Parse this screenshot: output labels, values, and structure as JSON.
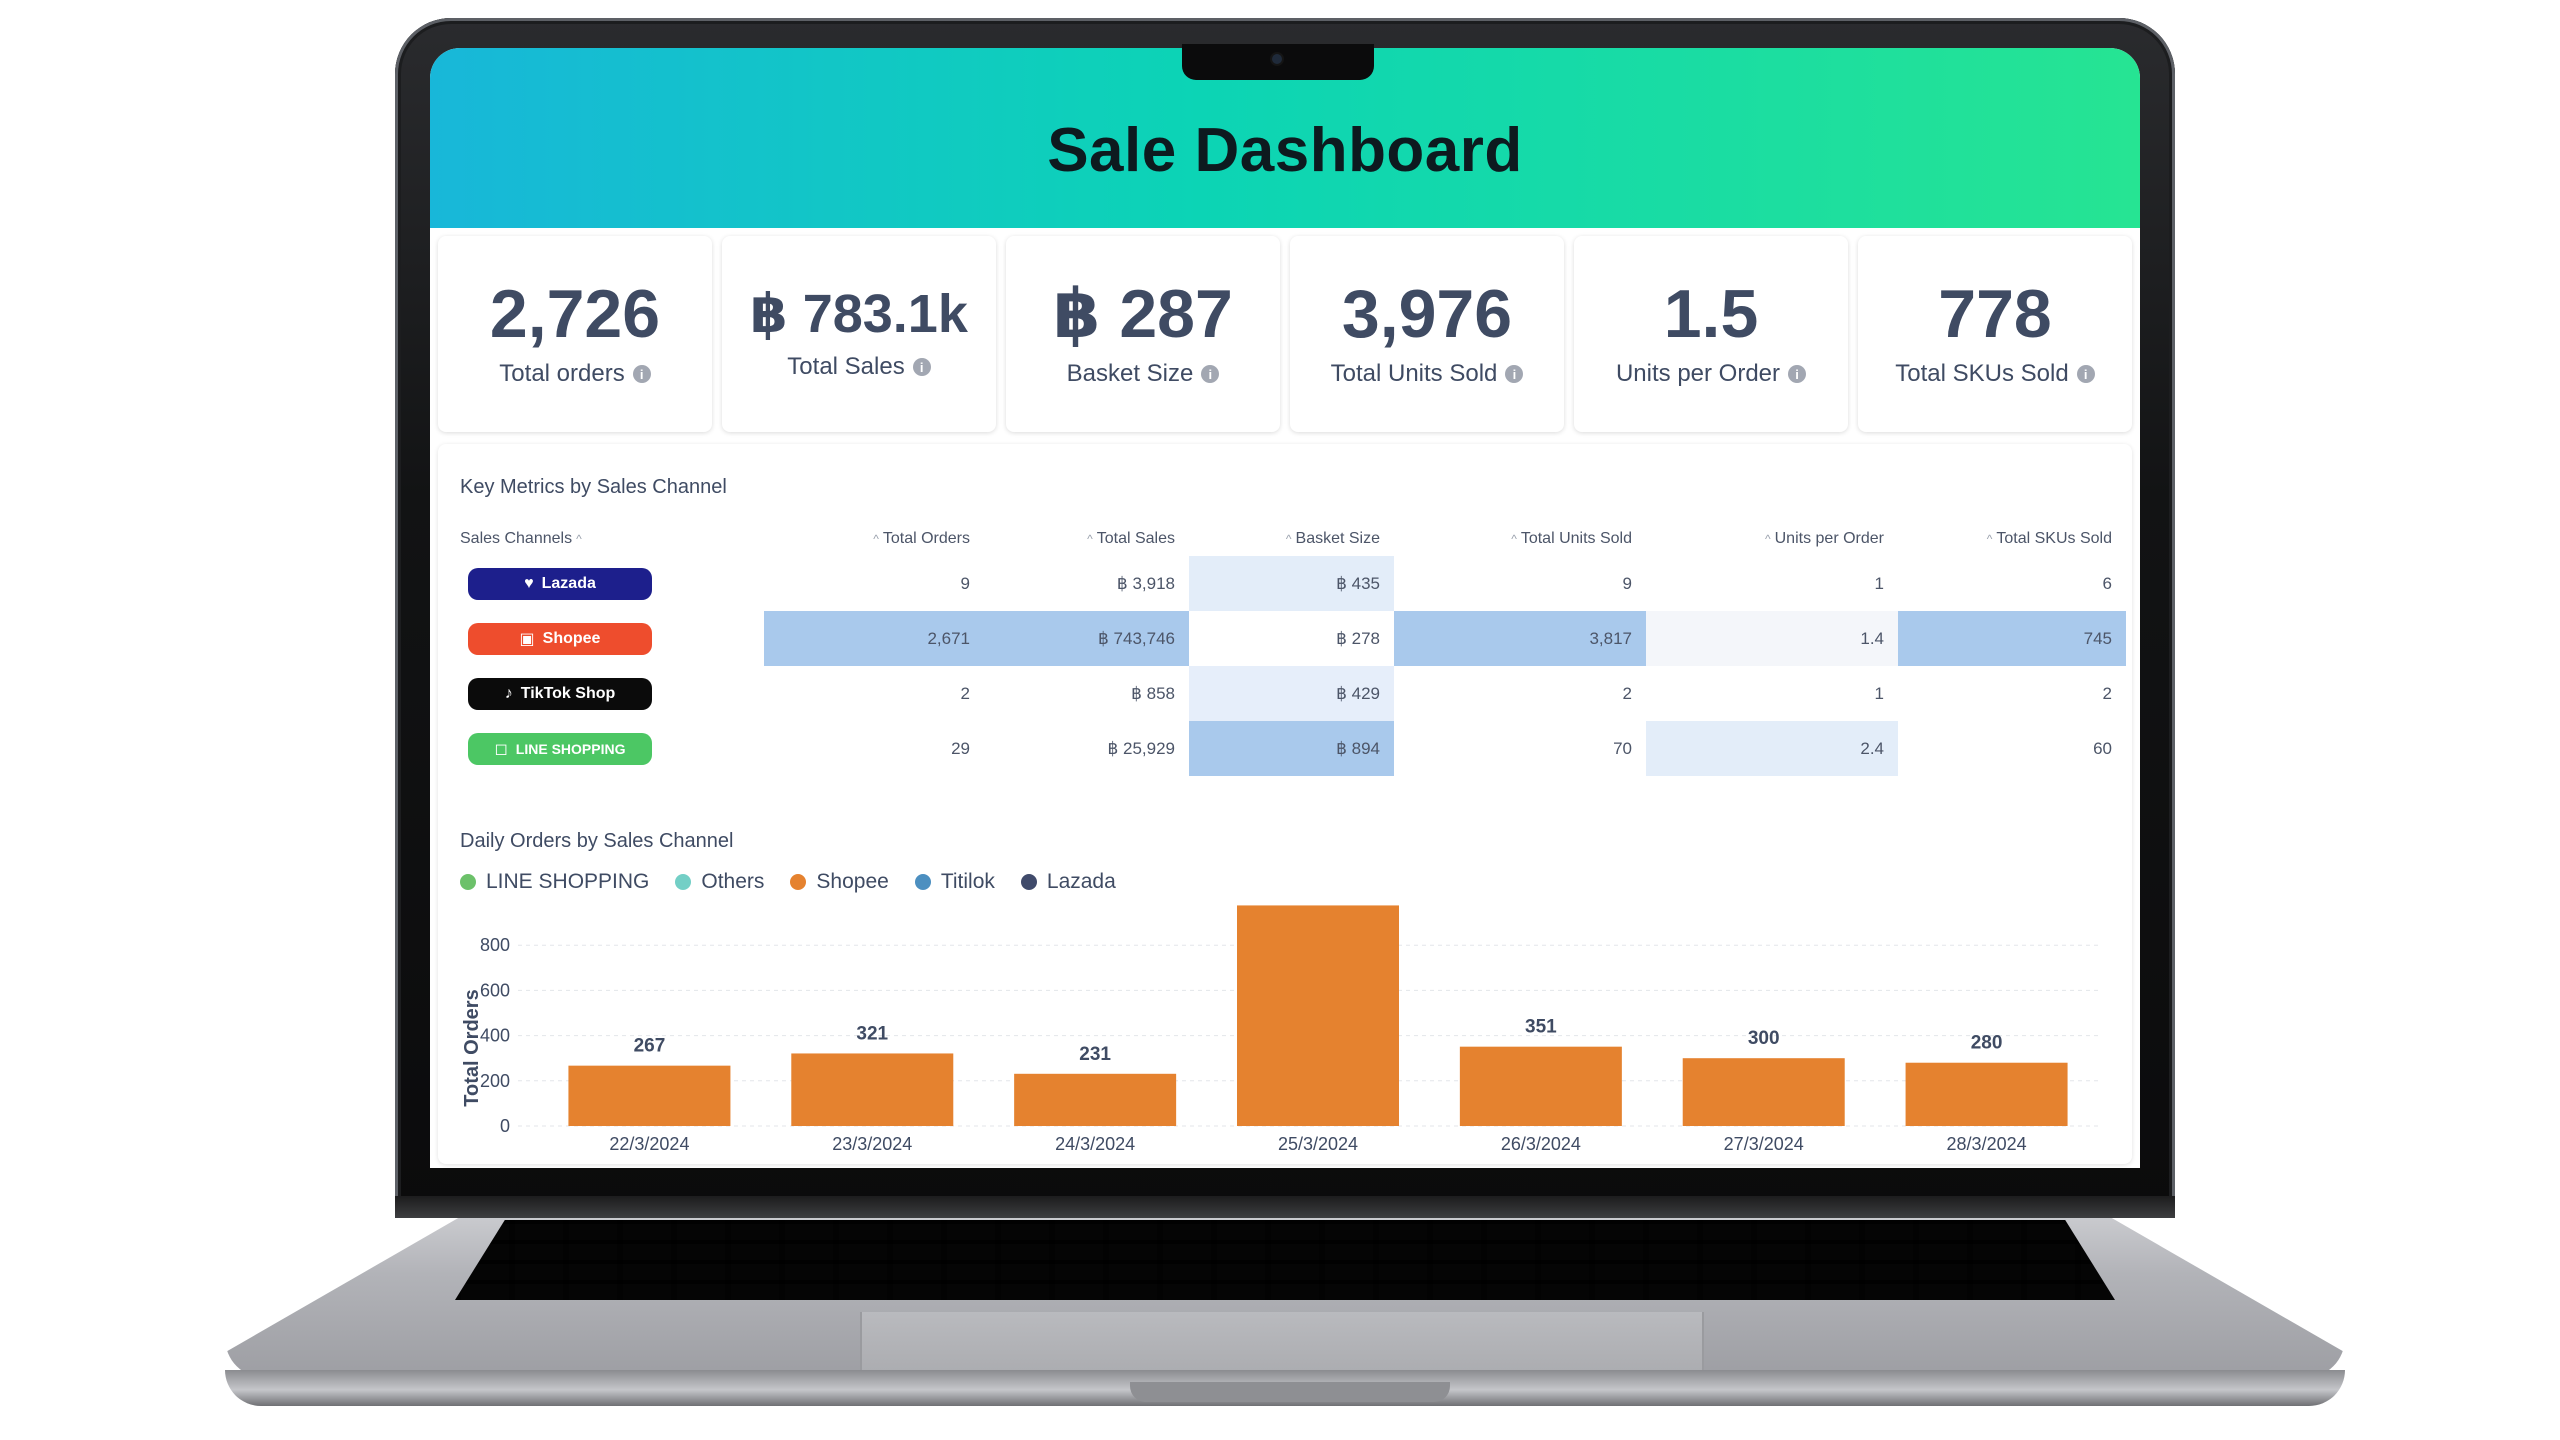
{
  "header": {
    "title": "Sale Dashboard"
  },
  "kpis": [
    {
      "value": "2,726",
      "label": "Total orders",
      "info_icon": "i"
    },
    {
      "value": "฿ 783.1k",
      "label": "Total Sales",
      "info_icon": "i"
    },
    {
      "value": "฿ 287",
      "label": "Basket Size",
      "info_icon": "i"
    },
    {
      "value": "3,976",
      "label": "Total Units Sold",
      "info_icon": "i"
    },
    {
      "value": "1.5",
      "label": "Units per Order",
      "info_icon": "i"
    },
    {
      "value": "778",
      "label": "Total SKUs Sold",
      "info_icon": "i"
    }
  ],
  "metrics": {
    "title": "Key Metrics by Sales Channel",
    "sort_caret": "^",
    "columns": [
      "Sales Channels",
      "Total Orders",
      "Total Sales",
      "Basket Size",
      "Total Units Sold",
      "Units per Order",
      "Total SKUs Sold"
    ],
    "rows": [
      {
        "channel": "Lazada",
        "badge_color": "#1d1f8c",
        "icon": "heart-icon",
        "icon_glyph": "♥",
        "cells": [
          "9",
          "฿ 3,918",
          "฿ 435",
          "9",
          "1",
          "6"
        ],
        "shades": [
          "#ffffff",
          "#ffffff",
          "#e3edf9",
          "#ffffff",
          "#ffffff",
          "#ffffff"
        ]
      },
      {
        "channel": "Shopee",
        "badge_color": "#ee4d2d",
        "icon": "shopping-bag-icon",
        "icon_glyph": "▣",
        "cells": [
          "2,671",
          "฿ 743,746",
          "฿ 278",
          "3,817",
          "1.4",
          "745"
        ],
        "shades": [
          "#a9c9ec",
          "#a9c9ec",
          "#ffffff",
          "#a9c9ec",
          "#f4f6fa",
          "#a9c9ec"
        ]
      },
      {
        "channel": "TikTok Shop",
        "badge_color": "#0b0b0b",
        "icon": "tiktok-note-icon",
        "icon_glyph": "♪",
        "cells": [
          "2",
          "฿ 858",
          "฿ 429",
          "2",
          "1",
          "2"
        ],
        "shades": [
          "#ffffff",
          "#ffffff",
          "#e6eefa",
          "#ffffff",
          "#ffffff",
          "#ffffff"
        ]
      },
      {
        "channel": "LINE SHOPPING",
        "badge_color": "#4cc764",
        "icon": "shopping-bag-outline-icon",
        "icon_glyph": "◻",
        "cells": [
          "29",
          "฿ 25,929",
          "฿ 894",
          "70",
          "2.4",
          "60"
        ],
        "shades": [
          "#ffffff",
          "#ffffff",
          "#a9c9ec",
          "#ffffff",
          "#e3edf9",
          "#ffffff"
        ]
      }
    ]
  },
  "chart": {
    "title": "Daily Orders by Sales Channel",
    "legend": [
      {
        "label": "LINE SHOPPING",
        "color": "#6cc16a"
      },
      {
        "label": "Others",
        "color": "#73cfc6"
      },
      {
        "label": "Shopee",
        "color": "#e5822f"
      },
      {
        "label": "Titilok",
        "color": "#4c8fc0"
      },
      {
        "label": "Lazada",
        "color": "#404b6b"
      }
    ]
  },
  "chart_data": {
    "type": "bar",
    "title": "Daily Orders by Sales Channel",
    "xlabel": "",
    "ylabel": "Total Orders",
    "categories": [
      "22/3/2024",
      "23/3/2024",
      "24/3/2024",
      "25/3/2024",
      "26/3/2024",
      "27/3/2024",
      "28/3/2024"
    ],
    "values": [
      267,
      321,
      231,
      976,
      351,
      300,
      280
    ],
    "ylim": [
      0,
      1000
    ],
    "yticks": [
      0,
      200,
      400,
      600,
      800
    ],
    "bar_color": "#e5822f",
    "grid": true,
    "legend_position": "top-left"
  }
}
